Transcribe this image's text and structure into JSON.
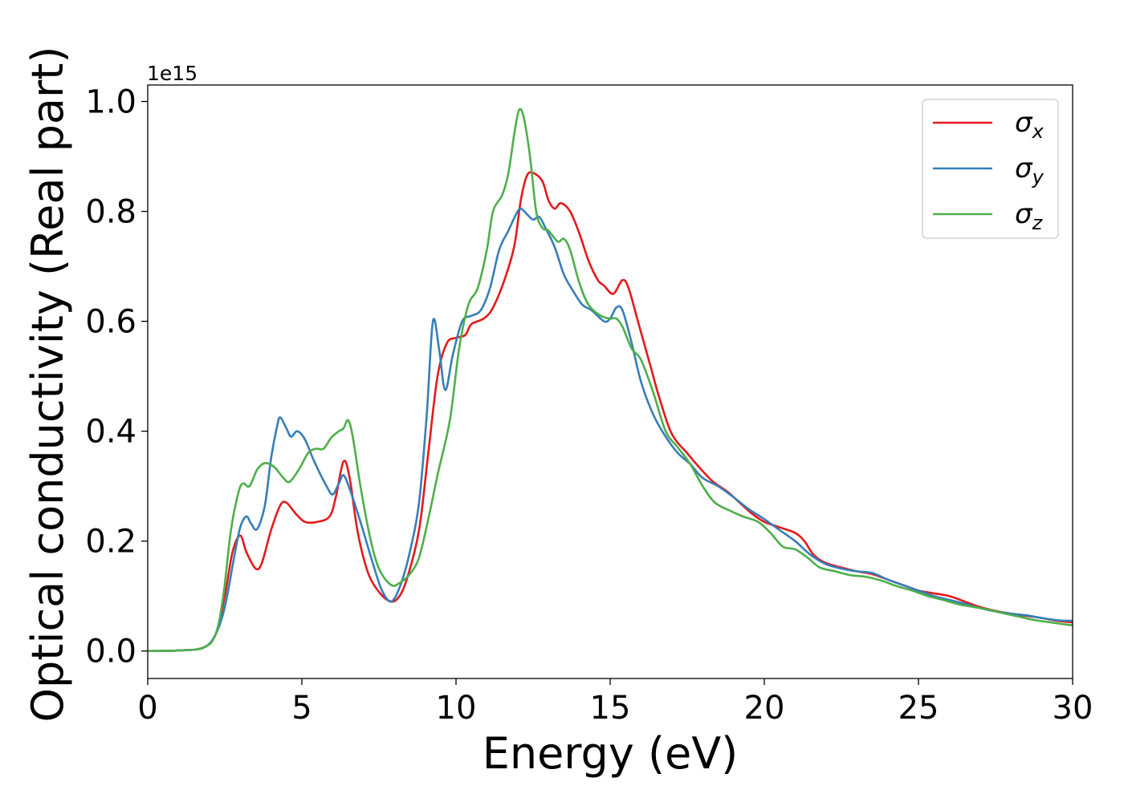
{
  "chart_data": {
    "type": "line",
    "xlabel": "Energy (eV)",
    "ylabel": "Optical conductivity (Real part)",
    "offset_text": "1e15",
    "xlim": [
      0,
      30
    ],
    "ylim": [
      -0.05,
      1.03
    ],
    "xticks": [
      0,
      5,
      10,
      15,
      20,
      25,
      30
    ],
    "xtick_labels": [
      "0",
      "5",
      "10",
      "15",
      "20",
      "25",
      "30"
    ],
    "yticks": [
      0.0,
      0.2,
      0.4,
      0.6,
      0.8,
      1.0
    ],
    "ytick_labels": [
      "0.0",
      "0.2",
      "0.4",
      "0.6",
      "0.8",
      "1.0"
    ],
    "grid": false,
    "legend_position": "top-right",
    "series": [
      {
        "name": "σx",
        "symbol": "σ",
        "subscript": "x",
        "color": "#e41a1c",
        "points": [
          [
            0,
            0
          ],
          [
            1,
            0.001
          ],
          [
            1.8,
            0.006
          ],
          [
            2.2,
            0.03
          ],
          [
            2.5,
            0.1
          ],
          [
            2.75,
            0.18
          ],
          [
            3.0,
            0.21
          ],
          [
            3.2,
            0.18
          ],
          [
            3.5,
            0.15
          ],
          [
            3.7,
            0.16
          ],
          [
            4.0,
            0.22
          ],
          [
            4.3,
            0.265
          ],
          [
            4.5,
            0.27
          ],
          [
            4.8,
            0.25
          ],
          [
            5.1,
            0.235
          ],
          [
            5.5,
            0.235
          ],
          [
            5.9,
            0.245
          ],
          [
            6.1,
            0.28
          ],
          [
            6.35,
            0.345
          ],
          [
            6.55,
            0.315
          ],
          [
            6.8,
            0.22
          ],
          [
            7.1,
            0.15
          ],
          [
            7.4,
            0.115
          ],
          [
            7.8,
            0.092
          ],
          [
            8.1,
            0.095
          ],
          [
            8.4,
            0.13
          ],
          [
            8.8,
            0.22
          ],
          [
            9.1,
            0.36
          ],
          [
            9.4,
            0.5
          ],
          [
            9.7,
            0.56
          ],
          [
            10.0,
            0.57
          ],
          [
            10.3,
            0.575
          ],
          [
            10.5,
            0.595
          ],
          [
            10.9,
            0.605
          ],
          [
            11.2,
            0.625
          ],
          [
            11.6,
            0.68
          ],
          [
            11.9,
            0.74
          ],
          [
            12.1,
            0.82
          ],
          [
            12.3,
            0.865
          ],
          [
            12.5,
            0.87
          ],
          [
            12.8,
            0.855
          ],
          [
            13.0,
            0.82
          ],
          [
            13.2,
            0.805
          ],
          [
            13.4,
            0.815
          ],
          [
            13.7,
            0.8
          ],
          [
            14.0,
            0.76
          ],
          [
            14.3,
            0.71
          ],
          [
            14.6,
            0.675
          ],
          [
            14.8,
            0.665
          ],
          [
            15.1,
            0.65
          ],
          [
            15.4,
            0.675
          ],
          [
            15.6,
            0.66
          ],
          [
            15.9,
            0.6
          ],
          [
            16.3,
            0.52
          ],
          [
            16.6,
            0.46
          ],
          [
            17.0,
            0.395
          ],
          [
            17.5,
            0.36
          ],
          [
            17.8,
            0.34
          ],
          [
            18.3,
            0.31
          ],
          [
            18.8,
            0.29
          ],
          [
            19.2,
            0.27
          ],
          [
            19.6,
            0.25
          ],
          [
            20.0,
            0.235
          ],
          [
            20.5,
            0.225
          ],
          [
            21.0,
            0.215
          ],
          [
            21.3,
            0.2
          ],
          [
            21.6,
            0.175
          ],
          [
            22.0,
            0.16
          ],
          [
            22.5,
            0.152
          ],
          [
            23.0,
            0.145
          ],
          [
            23.5,
            0.14
          ],
          [
            24.0,
            0.13
          ],
          [
            24.5,
            0.12
          ],
          [
            25.0,
            0.11
          ],
          [
            25.5,
            0.105
          ],
          [
            26.0,
            0.1
          ],
          [
            26.5,
            0.09
          ],
          [
            27.0,
            0.08
          ],
          [
            27.5,
            0.073
          ],
          [
            28.0,
            0.068
          ],
          [
            28.5,
            0.064
          ],
          [
            29.0,
            0.06
          ],
          [
            29.5,
            0.055
          ],
          [
            30.0,
            0.052
          ]
        ]
      },
      {
        "name": "σy",
        "symbol": "σ",
        "subscript": "y",
        "color": "#377eb8",
        "points": [
          [
            0,
            0
          ],
          [
            1,
            0.001
          ],
          [
            1.8,
            0.006
          ],
          [
            2.2,
            0.03
          ],
          [
            2.5,
            0.08
          ],
          [
            2.8,
            0.17
          ],
          [
            3.0,
            0.225
          ],
          [
            3.2,
            0.245
          ],
          [
            3.35,
            0.232
          ],
          [
            3.55,
            0.222
          ],
          [
            3.8,
            0.265
          ],
          [
            4.0,
            0.35
          ],
          [
            4.2,
            0.41
          ],
          [
            4.3,
            0.425
          ],
          [
            4.5,
            0.405
          ],
          [
            4.65,
            0.39
          ],
          [
            4.85,
            0.4
          ],
          [
            5.1,
            0.385
          ],
          [
            5.4,
            0.345
          ],
          [
            5.8,
            0.3
          ],
          [
            6.0,
            0.285
          ],
          [
            6.2,
            0.305
          ],
          [
            6.35,
            0.32
          ],
          [
            6.55,
            0.295
          ],
          [
            6.9,
            0.235
          ],
          [
            7.3,
            0.16
          ],
          [
            7.6,
            0.11
          ],
          [
            7.9,
            0.09
          ],
          [
            8.2,
            0.12
          ],
          [
            8.5,
            0.18
          ],
          [
            8.8,
            0.27
          ],
          [
            9.05,
            0.43
          ],
          [
            9.25,
            0.6
          ],
          [
            9.45,
            0.55
          ],
          [
            9.65,
            0.475
          ],
          [
            9.9,
            0.54
          ],
          [
            10.2,
            0.6
          ],
          [
            10.5,
            0.61
          ],
          [
            10.8,
            0.62
          ],
          [
            11.1,
            0.66
          ],
          [
            11.4,
            0.73
          ],
          [
            11.7,
            0.765
          ],
          [
            11.95,
            0.795
          ],
          [
            12.1,
            0.805
          ],
          [
            12.3,
            0.795
          ],
          [
            12.5,
            0.785
          ],
          [
            12.7,
            0.79
          ],
          [
            12.9,
            0.77
          ],
          [
            13.2,
            0.735
          ],
          [
            13.5,
            0.685
          ],
          [
            13.8,
            0.655
          ],
          [
            14.1,
            0.63
          ],
          [
            14.4,
            0.62
          ],
          [
            14.8,
            0.6
          ],
          [
            15.0,
            0.605
          ],
          [
            15.2,
            0.625
          ],
          [
            15.4,
            0.62
          ],
          [
            15.7,
            0.56
          ],
          [
            16.0,
            0.49
          ],
          [
            16.4,
            0.43
          ],
          [
            16.8,
            0.39
          ],
          [
            17.2,
            0.36
          ],
          [
            17.6,
            0.34
          ],
          [
            18.0,
            0.315
          ],
          [
            18.5,
            0.3
          ],
          [
            19.0,
            0.28
          ],
          [
            19.5,
            0.258
          ],
          [
            20.0,
            0.24
          ],
          [
            20.5,
            0.22
          ],
          [
            21.0,
            0.2
          ],
          [
            21.5,
            0.175
          ],
          [
            22.0,
            0.158
          ],
          [
            22.5,
            0.15
          ],
          [
            23.0,
            0.145
          ],
          [
            23.5,
            0.142
          ],
          [
            24.0,
            0.13
          ],
          [
            24.5,
            0.12
          ],
          [
            25.0,
            0.11
          ],
          [
            25.5,
            0.1
          ],
          [
            26.0,
            0.093
          ],
          [
            26.5,
            0.086
          ],
          [
            27.0,
            0.078
          ],
          [
            27.5,
            0.072
          ],
          [
            28.0,
            0.068
          ],
          [
            28.5,
            0.065
          ],
          [
            29.0,
            0.06
          ],
          [
            29.5,
            0.056
          ],
          [
            30.0,
            0.055
          ]
        ]
      },
      {
        "name": "σz",
        "symbol": "σ",
        "subscript": "z",
        "color": "#4daf4a",
        "points": [
          [
            0,
            0
          ],
          [
            1,
            0.001
          ],
          [
            1.8,
            0.006
          ],
          [
            2.2,
            0.03
          ],
          [
            2.45,
            0.1
          ],
          [
            2.7,
            0.22
          ],
          [
            2.95,
            0.29
          ],
          [
            3.1,
            0.305
          ],
          [
            3.3,
            0.3
          ],
          [
            3.55,
            0.33
          ],
          [
            3.8,
            0.342
          ],
          [
            4.1,
            0.335
          ],
          [
            4.4,
            0.315
          ],
          [
            4.6,
            0.308
          ],
          [
            4.9,
            0.33
          ],
          [
            5.2,
            0.36
          ],
          [
            5.45,
            0.368
          ],
          [
            5.7,
            0.368
          ],
          [
            5.95,
            0.388
          ],
          [
            6.2,
            0.4
          ],
          [
            6.35,
            0.405
          ],
          [
            6.5,
            0.42
          ],
          [
            6.65,
            0.39
          ],
          [
            6.9,
            0.3
          ],
          [
            7.2,
            0.21
          ],
          [
            7.5,
            0.15
          ],
          [
            7.9,
            0.12
          ],
          [
            8.2,
            0.125
          ],
          [
            8.5,
            0.14
          ],
          [
            8.8,
            0.17
          ],
          [
            9.1,
            0.24
          ],
          [
            9.4,
            0.32
          ],
          [
            9.8,
            0.42
          ],
          [
            10.1,
            0.55
          ],
          [
            10.4,
            0.63
          ],
          [
            10.7,
            0.66
          ],
          [
            11.0,
            0.73
          ],
          [
            11.2,
            0.8
          ],
          [
            11.5,
            0.83
          ],
          [
            11.7,
            0.87
          ],
          [
            11.9,
            0.945
          ],
          [
            12.05,
            0.985
          ],
          [
            12.2,
            0.97
          ],
          [
            12.4,
            0.9
          ],
          [
            12.6,
            0.8
          ],
          [
            12.8,
            0.77
          ],
          [
            13.0,
            0.765
          ],
          [
            13.3,
            0.745
          ],
          [
            13.5,
            0.75
          ],
          [
            13.7,
            0.73
          ],
          [
            14.0,
            0.67
          ],
          [
            14.3,
            0.63
          ],
          [
            14.7,
            0.61
          ],
          [
            15.0,
            0.605
          ],
          [
            15.2,
            0.605
          ],
          [
            15.4,
            0.59
          ],
          [
            15.7,
            0.55
          ],
          [
            16.0,
            0.53
          ],
          [
            16.4,
            0.47
          ],
          [
            16.8,
            0.4
          ],
          [
            17.2,
            0.37
          ],
          [
            17.6,
            0.34
          ],
          [
            18.0,
            0.3
          ],
          [
            18.4,
            0.27
          ],
          [
            18.9,
            0.255
          ],
          [
            19.3,
            0.245
          ],
          [
            19.8,
            0.235
          ],
          [
            20.2,
            0.215
          ],
          [
            20.6,
            0.19
          ],
          [
            21.0,
            0.185
          ],
          [
            21.4,
            0.17
          ],
          [
            21.8,
            0.152
          ],
          [
            22.3,
            0.145
          ],
          [
            22.8,
            0.138
          ],
          [
            23.3,
            0.135
          ],
          [
            23.8,
            0.128
          ],
          [
            24.3,
            0.118
          ],
          [
            24.8,
            0.11
          ],
          [
            25.3,
            0.1
          ],
          [
            25.8,
            0.093
          ],
          [
            26.3,
            0.085
          ],
          [
            26.8,
            0.08
          ],
          [
            27.3,
            0.075
          ],
          [
            27.8,
            0.068
          ],
          [
            28.3,
            0.062
          ],
          [
            28.8,
            0.056
          ],
          [
            29.3,
            0.052
          ],
          [
            29.8,
            0.048
          ],
          [
            30.0,
            0.047
          ]
        ]
      }
    ]
  }
}
